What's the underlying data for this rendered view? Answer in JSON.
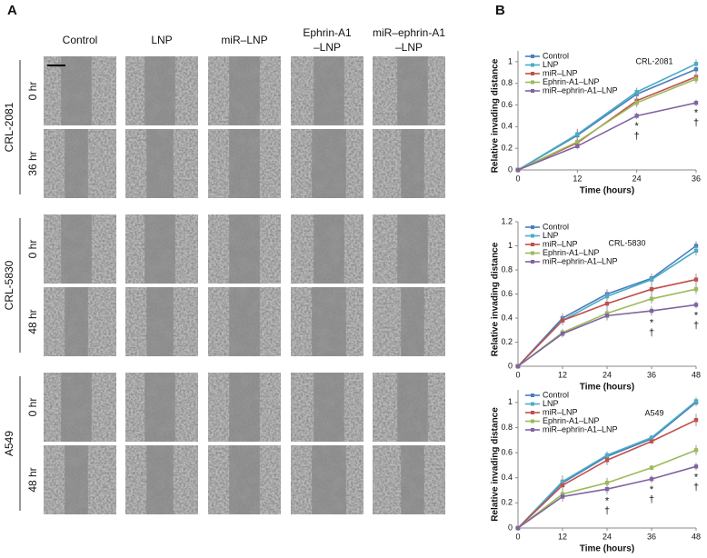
{
  "panel_a": {
    "label": "A",
    "columns": [
      [
        "Control"
      ],
      [
        "LNP"
      ],
      [
        "miR–LNP"
      ],
      [
        "Ephrin-A1",
        "–LNP"
      ],
      [
        "miR–ephrin-A1",
        "–LNP"
      ]
    ],
    "rows": [
      {
        "cell_line": "CRL-2081",
        "times": [
          "0 hr",
          "36 hr"
        ]
      },
      {
        "cell_line": "CRL-5830",
        "times": [
          "0 hr",
          "48 hr"
        ]
      },
      {
        "cell_line": "A549",
        "times": [
          "0 hr",
          "48 hr"
        ]
      }
    ]
  },
  "panel_b": {
    "label": "B"
  },
  "chart_data": [
    {
      "type": "line",
      "title": "CRL-2081",
      "x_label": "Time (hours)",
      "y_label": "Relative invading distance",
      "x": [
        0,
        12,
        24,
        36
      ],
      "xlim": [
        0,
        36
      ],
      "xticks": [
        0,
        12,
        24,
        36
      ],
      "ylim": [
        0,
        1.1
      ],
      "yticks": [
        0,
        0.2,
        0.4,
        0.6,
        0.8,
        1
      ],
      "series": [
        {
          "name": "Control",
          "color": "#4a7ebb",
          "values": [
            0,
            0.32,
            0.7,
            0.93
          ],
          "errors": [
            0,
            0.05,
            0.04,
            0.04
          ]
        },
        {
          "name": "LNP",
          "color": "#4bacc6",
          "values": [
            0,
            0.33,
            0.72,
            0.98
          ],
          "errors": [
            0,
            0.05,
            0.04,
            0.04
          ]
        },
        {
          "name": "miR–LNP",
          "color": "#c0504d",
          "values": [
            0,
            0.25,
            0.64,
            0.86
          ],
          "errors": [
            0,
            0.04,
            0.04,
            0.04
          ]
        },
        {
          "name": "Ephrin-A1–LNP",
          "color": "#9bbb59",
          "values": [
            0,
            0.26,
            0.62,
            0.84
          ],
          "errors": [
            0,
            0.04,
            0.04,
            0.04
          ]
        },
        {
          "name": "miR–ephrin-A1–LNP",
          "color": "#8064a2",
          "values": [
            0,
            0.22,
            0.5,
            0.62
          ],
          "errors": [
            0,
            0.03,
            0.03,
            0.03
          ]
        }
      ],
      "markers": [
        {
          "x": 24,
          "labels": [
            "*",
            "†"
          ]
        },
        {
          "x": 36,
          "labels": [
            "*",
            "†"
          ]
        }
      ]
    },
    {
      "type": "line",
      "title": "CRL-5830",
      "x_label": "Time (hours)",
      "y_label": "Relative invading distance",
      "x": [
        0,
        12,
        24,
        36,
        48
      ],
      "xlim": [
        0,
        48
      ],
      "xticks": [
        0,
        12,
        24,
        36,
        48
      ],
      "ylim": [
        0,
        1.2
      ],
      "yticks": [
        0,
        0.2,
        0.4,
        0.6,
        0.8,
        1,
        1.2
      ],
      "series": [
        {
          "name": "Control",
          "color": "#4a7ebb",
          "values": [
            0,
            0.4,
            0.6,
            0.73,
            1.0
          ],
          "errors": [
            0,
            0.04,
            0.04,
            0.04,
            0.04
          ]
        },
        {
          "name": "LNP",
          "color": "#4bacc6",
          "values": [
            0,
            0.38,
            0.58,
            0.72,
            0.96
          ],
          "errors": [
            0,
            0.04,
            0.04,
            0.04,
            0.04
          ]
        },
        {
          "name": "miR–LNP",
          "color": "#c0504d",
          "values": [
            0,
            0.38,
            0.52,
            0.64,
            0.72
          ],
          "errors": [
            0,
            0.04,
            0.04,
            0.04,
            0.05
          ]
        },
        {
          "name": "Ephrin-A1–LNP",
          "color": "#9bbb59",
          "values": [
            0,
            0.28,
            0.44,
            0.56,
            0.64
          ],
          "errors": [
            0,
            0.03,
            0.04,
            0.04,
            0.04
          ]
        },
        {
          "name": "miR–ephrin-A1–LNP",
          "color": "#8064a2",
          "values": [
            0,
            0.27,
            0.42,
            0.46,
            0.51
          ],
          "errors": [
            0,
            0.03,
            0.04,
            0.04,
            0.03
          ]
        }
      ],
      "markers": [
        {
          "x": 36,
          "labels": [
            "*",
            "†"
          ]
        },
        {
          "x": 48,
          "labels": [
            "*",
            "†"
          ]
        }
      ]
    },
    {
      "type": "line",
      "title": "A549",
      "x_label": "Time (hours)",
      "y_label": "Relative invading distance",
      "x": [
        0,
        12,
        24,
        36,
        48
      ],
      "xlim": [
        0,
        48
      ],
      "xticks": [
        0,
        12,
        24,
        36,
        48
      ],
      "ylim": [
        0,
        1.1
      ],
      "yticks": [
        0,
        0.2,
        0.4,
        0.6,
        0.8,
        1
      ],
      "series": [
        {
          "name": "Control",
          "color": "#4a7ebb",
          "values": [
            0,
            0.36,
            0.57,
            0.71,
            1.0
          ],
          "errors": [
            0,
            0.05,
            0.03,
            0.02,
            0.03
          ]
        },
        {
          "name": "LNP",
          "color": "#4bacc6",
          "values": [
            0,
            0.37,
            0.58,
            0.72,
            1.01
          ],
          "errors": [
            0,
            0.05,
            0.03,
            0.02,
            0.03
          ]
        },
        {
          "name": "miR–LNP",
          "color": "#c0504d",
          "values": [
            0,
            0.34,
            0.54,
            0.69,
            0.86
          ],
          "errors": [
            0,
            0.05,
            0.04,
            0.02,
            0.05
          ]
        },
        {
          "name": "Ephrin-A1–LNP",
          "color": "#9bbb59",
          "values": [
            0,
            0.27,
            0.36,
            0.48,
            0.62
          ],
          "errors": [
            0,
            0.04,
            0.04,
            0.02,
            0.04
          ]
        },
        {
          "name": "miR–ephrin-A1–LNP",
          "color": "#8064a2",
          "values": [
            0,
            0.25,
            0.31,
            0.39,
            0.49
          ],
          "errors": [
            0,
            0.04,
            0.04,
            0.03,
            0.03
          ]
        }
      ],
      "markers": [
        {
          "x": 24,
          "labels": [
            "*",
            "†"
          ]
        },
        {
          "x": 36,
          "labels": [
            "*",
            "†"
          ]
        },
        {
          "x": 48,
          "labels": [
            "*",
            "†"
          ]
        }
      ]
    }
  ]
}
